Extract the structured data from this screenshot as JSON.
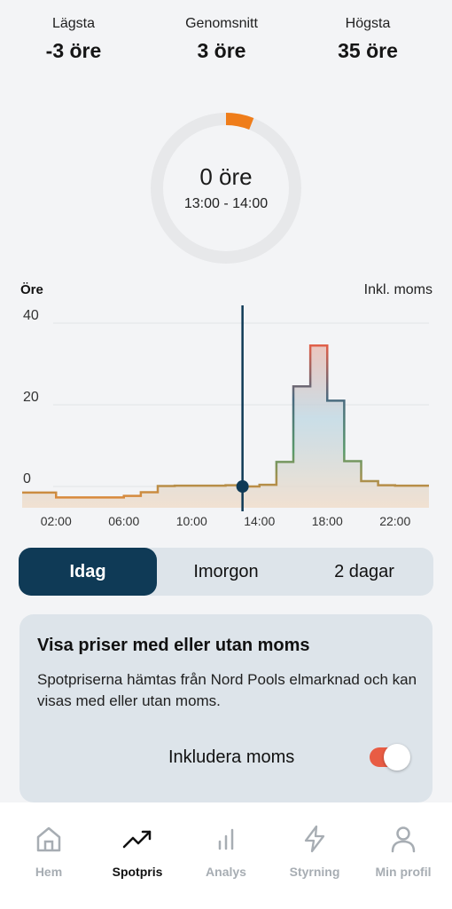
{
  "stats": {
    "low": {
      "label": "Lägsta",
      "value": "-3 öre"
    },
    "avg": {
      "label": "Genomsnitt",
      "value": "3 öre"
    },
    "high": {
      "label": "Högsta",
      "value": "35 öre"
    }
  },
  "gauge": {
    "value": "0 öre",
    "range": "13:00 - 14:00",
    "fill_fraction": 0.06,
    "track_color": "#e7e8ea",
    "fill_color": "#ef7d1a"
  },
  "chart": {
    "unit_label": "Öre",
    "vat_label": "Inkl. moms"
  },
  "chart_data": {
    "type": "line",
    "step": true,
    "ylabel": "Öre",
    "ylim": [
      -5,
      41
    ],
    "yticks": [
      0,
      20,
      40
    ],
    "xlim": [
      0,
      24
    ],
    "xticks": [
      "02:00",
      "06:00",
      "10:00",
      "14:00",
      "18:00",
      "22:00"
    ],
    "xtick_values": [
      2,
      6,
      10,
      14,
      18,
      22
    ],
    "hours": [
      0,
      1,
      2,
      3,
      4,
      5,
      6,
      7,
      8,
      9,
      10,
      11,
      12,
      13,
      14,
      15,
      16,
      17,
      18,
      19,
      20,
      21,
      22,
      23
    ],
    "values": [
      -1.5,
      -1.5,
      -2.7,
      -2.7,
      -2.7,
      -2.7,
      -2.3,
      -1.4,
      0.1,
      0.2,
      0.2,
      0.2,
      0.3,
      0.0,
      0.4,
      6.0,
      24.5,
      34.5,
      21.0,
      6.2,
      1.3,
      0.3,
      0.2,
      0.2
    ],
    "current_hour": 13,
    "current_value": 0,
    "grid": true,
    "colors": {
      "line": "#d98a3c",
      "high": "#e0604a",
      "mid": "#4a6a80",
      "marker": "#0f3a56"
    }
  },
  "segmented": {
    "today": "Idag",
    "tomorrow": "Imorgon",
    "two_days": "2 dagar"
  },
  "card": {
    "title": "Visa priser med eller utan moms",
    "text": "Spotpriserna hämtas från Nord Pools elmarknad och kan visas med eller utan moms.",
    "toggle_label": "Inkludera moms",
    "toggle_on": true
  },
  "nav": {
    "home": "Hem",
    "spot": "Spotpris",
    "analysis": "Analys",
    "control": "Styrning",
    "profile": "Min profil"
  }
}
